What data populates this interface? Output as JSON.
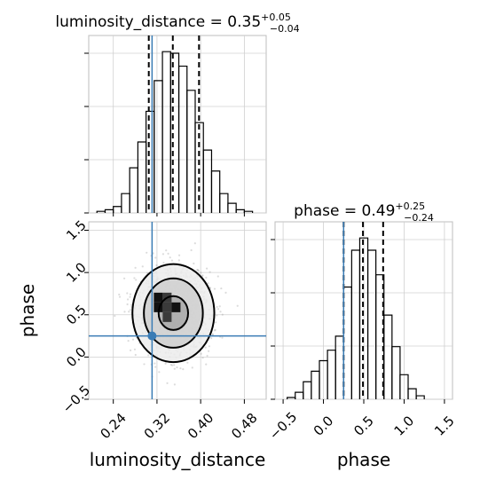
{
  "chart_data": {
    "type": "corner",
    "parameters": [
      "luminosity_distance",
      "phase"
    ],
    "grid": true,
    "titles": [
      {
        "parameter": "luminosity_distance",
        "prefix": "luminosity_distance = ",
        "median": "0.35",
        "plus": "+0.05",
        "minus": "−0.04"
      },
      {
        "parameter": "phase",
        "prefix": "phase = ",
        "median": "0.49",
        "plus": "+0.25",
        "minus": "−0.24"
      }
    ],
    "truths": {
      "luminosity_distance": 0.311,
      "phase": 0.25
    },
    "truth_color": "#3a7cb5",
    "quantiles": {
      "luminosity_distance": [
        0.305,
        0.349,
        0.397
      ],
      "phase": [
        0.25,
        0.49,
        0.74
      ]
    },
    "histogram_luminosity_distance": {
      "xlim": [
        0.195,
        0.52
      ],
      "bin_edges": [
        0.21,
        0.225,
        0.24,
        0.255,
        0.27,
        0.285,
        0.3,
        0.315,
        0.33,
        0.345,
        0.36,
        0.375,
        0.39,
        0.405,
        0.42,
        0.435,
        0.45,
        0.465,
        0.48,
        0.495
      ],
      "counts": [
        1,
        2,
        4,
        12,
        28,
        44,
        63,
        82,
        100,
        99,
        91,
        76,
        56,
        39,
        26,
        12,
        6,
        2,
        1
      ]
    },
    "histogram_phase": {
      "xlim": [
        -0.6,
        1.6
      ],
      "bin_edges": [
        -0.45,
        -0.35,
        -0.25,
        -0.15,
        -0.05,
        0.05,
        0.15,
        0.25,
        0.35,
        0.45,
        0.55,
        0.65,
        0.75,
        0.85,
        0.95,
        1.05,
        1.15,
        1.25
      ],
      "counts": [
        1,
        4,
        10,
        16,
        22,
        28,
        36,
        64,
        85,
        92,
        85,
        71,
        48,
        30,
        14,
        6,
        2
      ]
    },
    "scatter_2d": {
      "xlabel": "luminosity_distance",
      "ylabel": "phase",
      "xlim": [
        0.195,
        0.52
      ],
      "ylim": [
        -0.5,
        1.6
      ],
      "xticks": [
        "0.24",
        "0.32",
        "0.40",
        "0.48"
      ],
      "xtick_values": [
        0.24,
        0.32,
        0.4,
        0.48
      ],
      "yticks": [
        "−0.5",
        "0.0",
        "0.5",
        "1.0",
        "1.5"
      ],
      "ytick_values": [
        -0.5,
        0.0,
        0.5,
        1.0,
        1.5
      ],
      "center": [
        0.35,
        0.52
      ],
      "contours": [
        {
          "level": 0.39,
          "rx": 0.027,
          "ry": 0.2
        },
        {
          "level": 0.86,
          "rx": 0.054,
          "ry": 0.41
        },
        {
          "level": 0.99,
          "rx": 0.075,
          "ry": 0.58
        }
      ]
    },
    "phase_xticks": [
      "−0.5",
      "0.0",
      "0.5",
      "1.0",
      "1.5"
    ],
    "phase_xtick_values": [
      -0.5,
      0.0,
      0.5,
      1.0,
      1.5
    ],
    "phase_xlabel": "phase"
  }
}
